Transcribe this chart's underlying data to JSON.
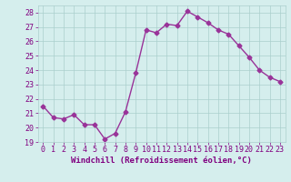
{
  "x": [
    0,
    1,
    2,
    3,
    4,
    5,
    6,
    7,
    8,
    9,
    10,
    11,
    12,
    13,
    14,
    15,
    16,
    17,
    18,
    19,
    20,
    21,
    22,
    23
  ],
  "y": [
    21.5,
    20.7,
    20.6,
    20.9,
    20.2,
    20.2,
    19.2,
    19.6,
    21.1,
    23.8,
    26.8,
    26.6,
    27.2,
    27.1,
    28.1,
    27.7,
    27.3,
    26.8,
    26.5,
    25.7,
    24.9,
    24.0,
    23.5,
    23.2
  ],
  "line_color": "#993399",
  "marker": "D",
  "marker_size": 2.5,
  "linewidth": 1.0,
  "xlabel": "Windchill (Refroidissement éolien,°C)",
  "ylabel": "",
  "ylim": [
    19,
    28.5
  ],
  "xlim": [
    -0.5,
    23.5
  ],
  "yticks": [
    19,
    20,
    21,
    22,
    23,
    24,
    25,
    26,
    27,
    28
  ],
  "xticks": [
    0,
    1,
    2,
    3,
    4,
    5,
    6,
    7,
    8,
    9,
    10,
    11,
    12,
    13,
    14,
    15,
    16,
    17,
    18,
    19,
    20,
    21,
    22,
    23
  ],
  "bg_color": "#d5eeed",
  "grid_color": "#aacfcc",
  "xlabel_color": "#800080",
  "tick_color": "#800080",
  "xlabel_fontsize": 6.5,
  "tick_fontsize": 6.0
}
